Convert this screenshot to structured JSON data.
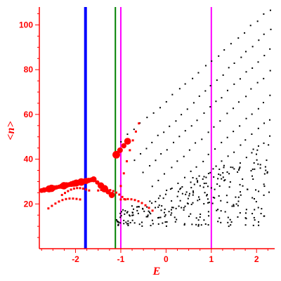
{
  "chart_data": {
    "type": "scatter",
    "title": "",
    "xlabel": "E",
    "ylabel": "<n>",
    "xlim": [
      -2.8,
      2.4
    ],
    "ylim": [
      0,
      108
    ],
    "x_ticks": [
      -2,
      -1,
      0,
      1,
      2
    ],
    "x_tick_labels": [
      "-2",
      "-1",
      "0",
      "1",
      "2"
    ],
    "y_ticks": [
      20,
      40,
      60,
      80,
      100
    ],
    "y_tick_labels": [
      "20",
      "40",
      "60",
      "80",
      "100"
    ],
    "grid": false,
    "legend": "none",
    "colors": {
      "axis": "#ff0000",
      "black_points": "#000000",
      "red_points": "#ff0000",
      "line_blue": "#0000ff",
      "line_green": "#008000",
      "line_magenta": "#ff00ff"
    },
    "vertical_lines": [
      {
        "x": -1.78,
        "color": "#0000ff"
      },
      {
        "x": -1.12,
        "color": "#008000"
      },
      {
        "x": -1.0,
        "color": "#ff00ff"
      },
      {
        "x": 1.0,
        "color": "#ff00ff"
      }
    ],
    "black_bands": [
      {
        "x": [
          -1.0,
          2.3
        ],
        "y": [
          48,
          107
        ],
        "count": 24
      },
      {
        "x": [
          -0.7,
          2.3
        ],
        "y": [
          40,
          98
        ],
        "count": 24
      },
      {
        "x": [
          -0.5,
          2.3
        ],
        "y": [
          34,
          89
        ],
        "count": 22
      },
      {
        "x": [
          -0.3,
          2.3
        ],
        "y": [
          28,
          79
        ],
        "count": 20
      },
      {
        "x": [
          0.0,
          2.3
        ],
        "y": [
          24,
          68
        ],
        "count": 18
      },
      {
        "x": [
          0.3,
          2.3
        ],
        "y": [
          22,
          58
        ],
        "count": 16
      },
      {
        "x": [
          0.6,
          2.3
        ],
        "y": [
          20,
          50
        ],
        "count": 14
      }
    ],
    "black_cloud": {
      "x": [
        -1.1,
        2.3
      ],
      "y": [
        4,
        48
      ],
      "count": 260
    },
    "red_large": [
      {
        "x": [
          -2.75,
          -1.6
        ],
        "y": [
          26,
          31
        ],
        "count": 22
      },
      {
        "x": [
          -1.6,
          -1.2
        ],
        "y": [
          31,
          24
        ],
        "count": 6
      },
      {
        "x": [
          -1.1,
          -0.85
        ],
        "y": [
          42,
          48
        ],
        "count": 4
      }
    ],
    "red_small": [
      {
        "x": [
          -2.3,
          -1.7
        ],
        "y": [
          24,
          26
        ],
        "count": 10
      },
      {
        "x": [
          -2.6,
          -1.9
        ],
        "y": [
          18,
          22
        ],
        "count": 10
      },
      {
        "x": [
          -1.5,
          -0.9
        ],
        "y": [
          26,
          22
        ],
        "count": 10
      },
      {
        "x": [
          -1.0,
          -0.3
        ],
        "y": [
          22,
          17
        ],
        "count": 10
      },
      {
        "x": [
          -1.0,
          -0.6
        ],
        "y": [
          28,
          56
        ],
        "count": 7
      }
    ]
  }
}
